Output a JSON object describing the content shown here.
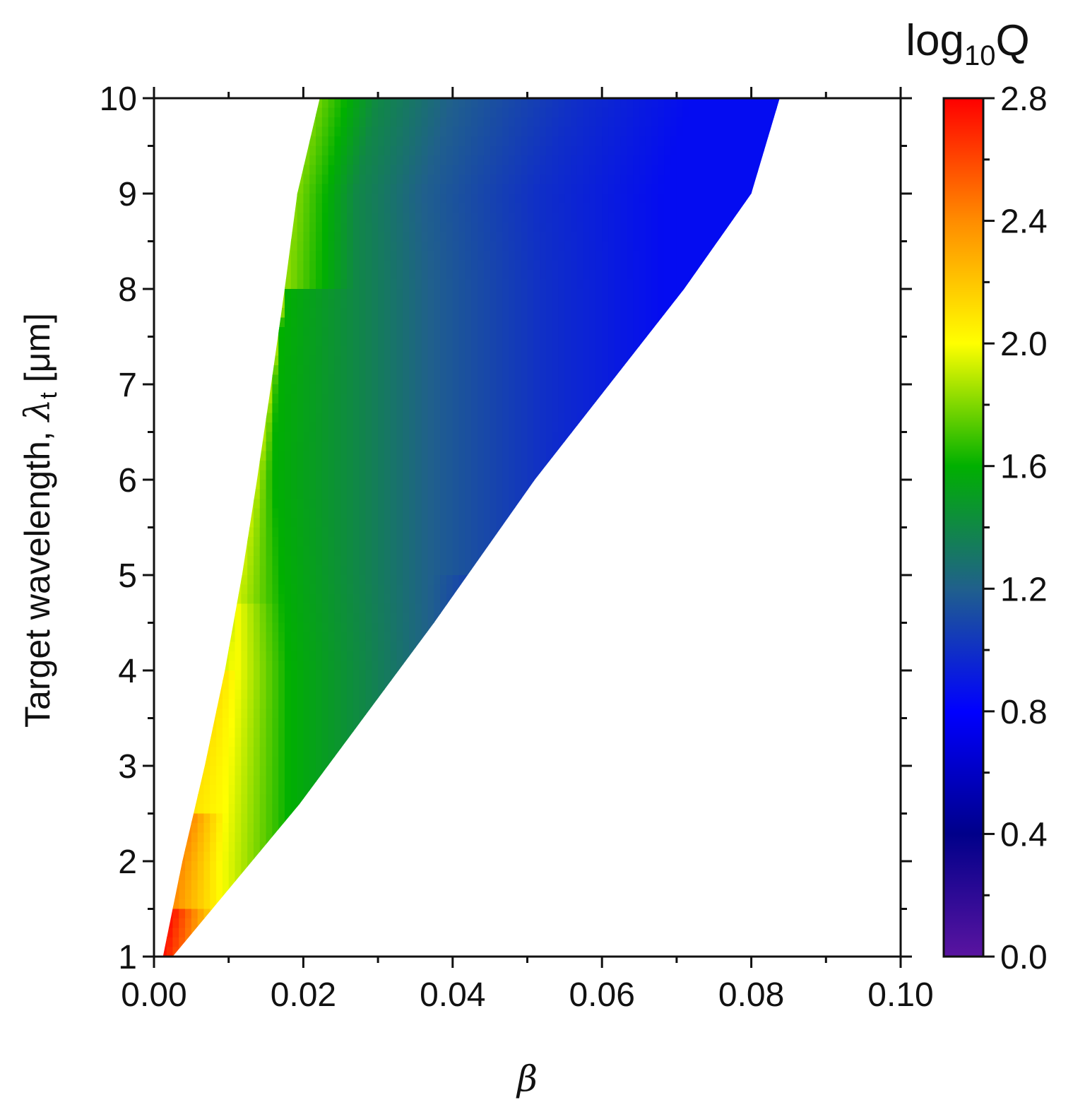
{
  "chart_data": {
    "type": "heatmap",
    "title": "",
    "xlabel": "β",
    "ylabel_parts": {
      "main": "Target wavelength, ",
      "symbol": "λ",
      "subscript": "t",
      "unit": " [μm]"
    },
    "xlim": [
      0.0,
      0.1
    ],
    "ylim": [
      1,
      10
    ],
    "x_ticks": [
      "0.00",
      "0.02",
      "0.04",
      "0.06",
      "0.08",
      "0.10"
    ],
    "y_ticks": [
      "1",
      "2",
      "3",
      "4",
      "5",
      "6",
      "7",
      "8",
      "9",
      "10"
    ],
    "colorbar": {
      "label_base": "log",
      "label_sub": "10",
      "label_var": "Q",
      "range": [
        0.0,
        2.8
      ],
      "ticks": [
        "0.0",
        "0.4",
        "0.8",
        "1.2",
        "1.6",
        "2.0",
        "2.4",
        "2.8"
      ],
      "colormap": [
        "#5a14a0",
        "#00008a",
        "#0000ff",
        "#20608c",
        "#00b000",
        "#ffff00",
        "#ff8c00",
        "#ff0000"
      ]
    },
    "region_boundary": {
      "left_edge": [
        [
          0.0012,
          1
        ],
        [
          0.0038,
          2
        ],
        [
          0.0068,
          3
        ],
        [
          0.0095,
          4
        ],
        [
          0.0118,
          5
        ],
        [
          0.0138,
          6
        ],
        [
          0.0157,
          7
        ],
        [
          0.0175,
          8
        ],
        [
          0.0192,
          9
        ],
        [
          0.0222,
          10
        ]
      ],
      "right_edge": [
        [
          0.0025,
          1
        ],
        [
          0.0195,
          2.6
        ],
        [
          0.0375,
          4.5
        ],
        [
          0.051,
          6
        ],
        [
          0.061,
          7
        ],
        [
          0.071,
          8
        ],
        [
          0.08,
          9
        ],
        [
          0.0838,
          10
        ]
      ]
    },
    "contour_x_at_lambda": {
      "lambda": [
        2,
        3,
        4,
        5,
        6,
        7,
        8,
        9,
        10
      ],
      "levels": [
        {
          "value": 2.0,
          "x": [
            0.009,
            0.01,
            0.011,
            null,
            null,
            null,
            null,
            null,
            null
          ]
        },
        {
          "value": 1.6,
          "x": [
            null,
            0.018,
            0.018,
            0.017,
            0.016,
            0.0165,
            0.0175,
            0.019,
            0.0222
          ]
        },
        {
          "value": 1.4,
          "x": [
            null,
            null,
            0.028,
            0.027,
            0.027,
            0.027,
            0.027,
            0.027,
            0.03
          ]
        },
        {
          "value": 1.2,
          "x": [
            null,
            null,
            null,
            null,
            0.037,
            0.037,
            0.037,
            0.036,
            0.04
          ]
        },
        {
          "value": 1.0,
          "x": [
            null,
            null,
            null,
            null,
            null,
            0.052,
            0.052,
            0.051,
            0.056
          ]
        },
        {
          "value": 0.85,
          "x": [
            null,
            null,
            null,
            null,
            null,
            null,
            null,
            0.068,
            0.072
          ]
        }
      ]
    }
  }
}
